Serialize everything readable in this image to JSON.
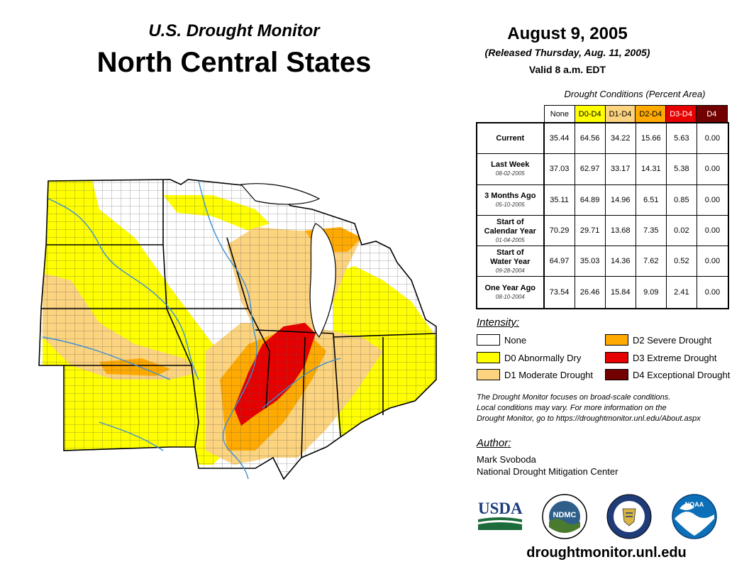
{
  "header": {
    "subtitle": "U.S. Drought Monitor",
    "title": "North Central States",
    "date": "August 9, 2005",
    "released": "(Released Thursday, Aug. 11, 2005)",
    "valid": "Valid 8 a.m. EDT"
  },
  "stats": {
    "caption": "Drought Conditions (Percent Area)",
    "columns": [
      "None",
      "D0-D4",
      "D1-D4",
      "D2-D4",
      "D3-D4",
      "D4"
    ],
    "column_colors": [
      "#ffffff",
      "#ffff00",
      "#fcd37f",
      "#ffaa00",
      "#e60000",
      "#730000"
    ],
    "rows": [
      {
        "label": "Current",
        "date": "",
        "values": [
          "35.44",
          "64.56",
          "34.22",
          "15.66",
          "5.63",
          "0.00"
        ]
      },
      {
        "label": "Last Week",
        "date": "08-02-2005",
        "values": [
          "37.03",
          "62.97",
          "33.17",
          "14.31",
          "5.38",
          "0.00"
        ]
      },
      {
        "label": "3 Months Ago",
        "date": "05-10-2005",
        "values": [
          "35.11",
          "64.89",
          "14.96",
          "6.51",
          "0.85",
          "0.00"
        ]
      },
      {
        "label": "Start of Calendar Year",
        "date": "01-04-2005",
        "values": [
          "70.29",
          "29.71",
          "13.68",
          "7.35",
          "0.02",
          "0.00"
        ]
      },
      {
        "label": "Start of Water Year",
        "date": "09-28-2004",
        "values": [
          "64.97",
          "35.03",
          "14.36",
          "7.62",
          "0.52",
          "0.00"
        ]
      },
      {
        "label": "One Year Ago",
        "date": "08-10-2004",
        "values": [
          "73.54",
          "26.46",
          "15.84",
          "9.09",
          "2.41",
          "0.00"
        ]
      }
    ]
  },
  "legend": {
    "title": "Intensity:",
    "items": [
      {
        "label": "None",
        "color": "#ffffff"
      },
      {
        "label": "D0 Abnormally Dry",
        "color": "#ffff00"
      },
      {
        "label": "D1 Moderate Drought",
        "color": "#fcd37f"
      },
      {
        "label": "D2 Severe Drought",
        "color": "#ffaa00"
      },
      {
        "label": "D3 Extreme Drought",
        "color": "#e60000"
      },
      {
        "label": "D4 Exceptional Drought",
        "color": "#730000"
      }
    ]
  },
  "note": {
    "line1": "The Drought Monitor focuses on broad-scale conditions.",
    "line2": "Local conditions may vary. For more information on the",
    "line3": "Drought Monitor, go to https://droughtmonitor.unl.edu/About.aspx"
  },
  "author": {
    "title": "Author:",
    "name": "Mark Svoboda",
    "org": "National Drought Mitigation Center"
  },
  "logos": {
    "usda": "USDA",
    "ndmc": "NDMC",
    "noaa": "NOAA"
  },
  "footer": {
    "url": "droughtmonitor.unl.edu"
  }
}
